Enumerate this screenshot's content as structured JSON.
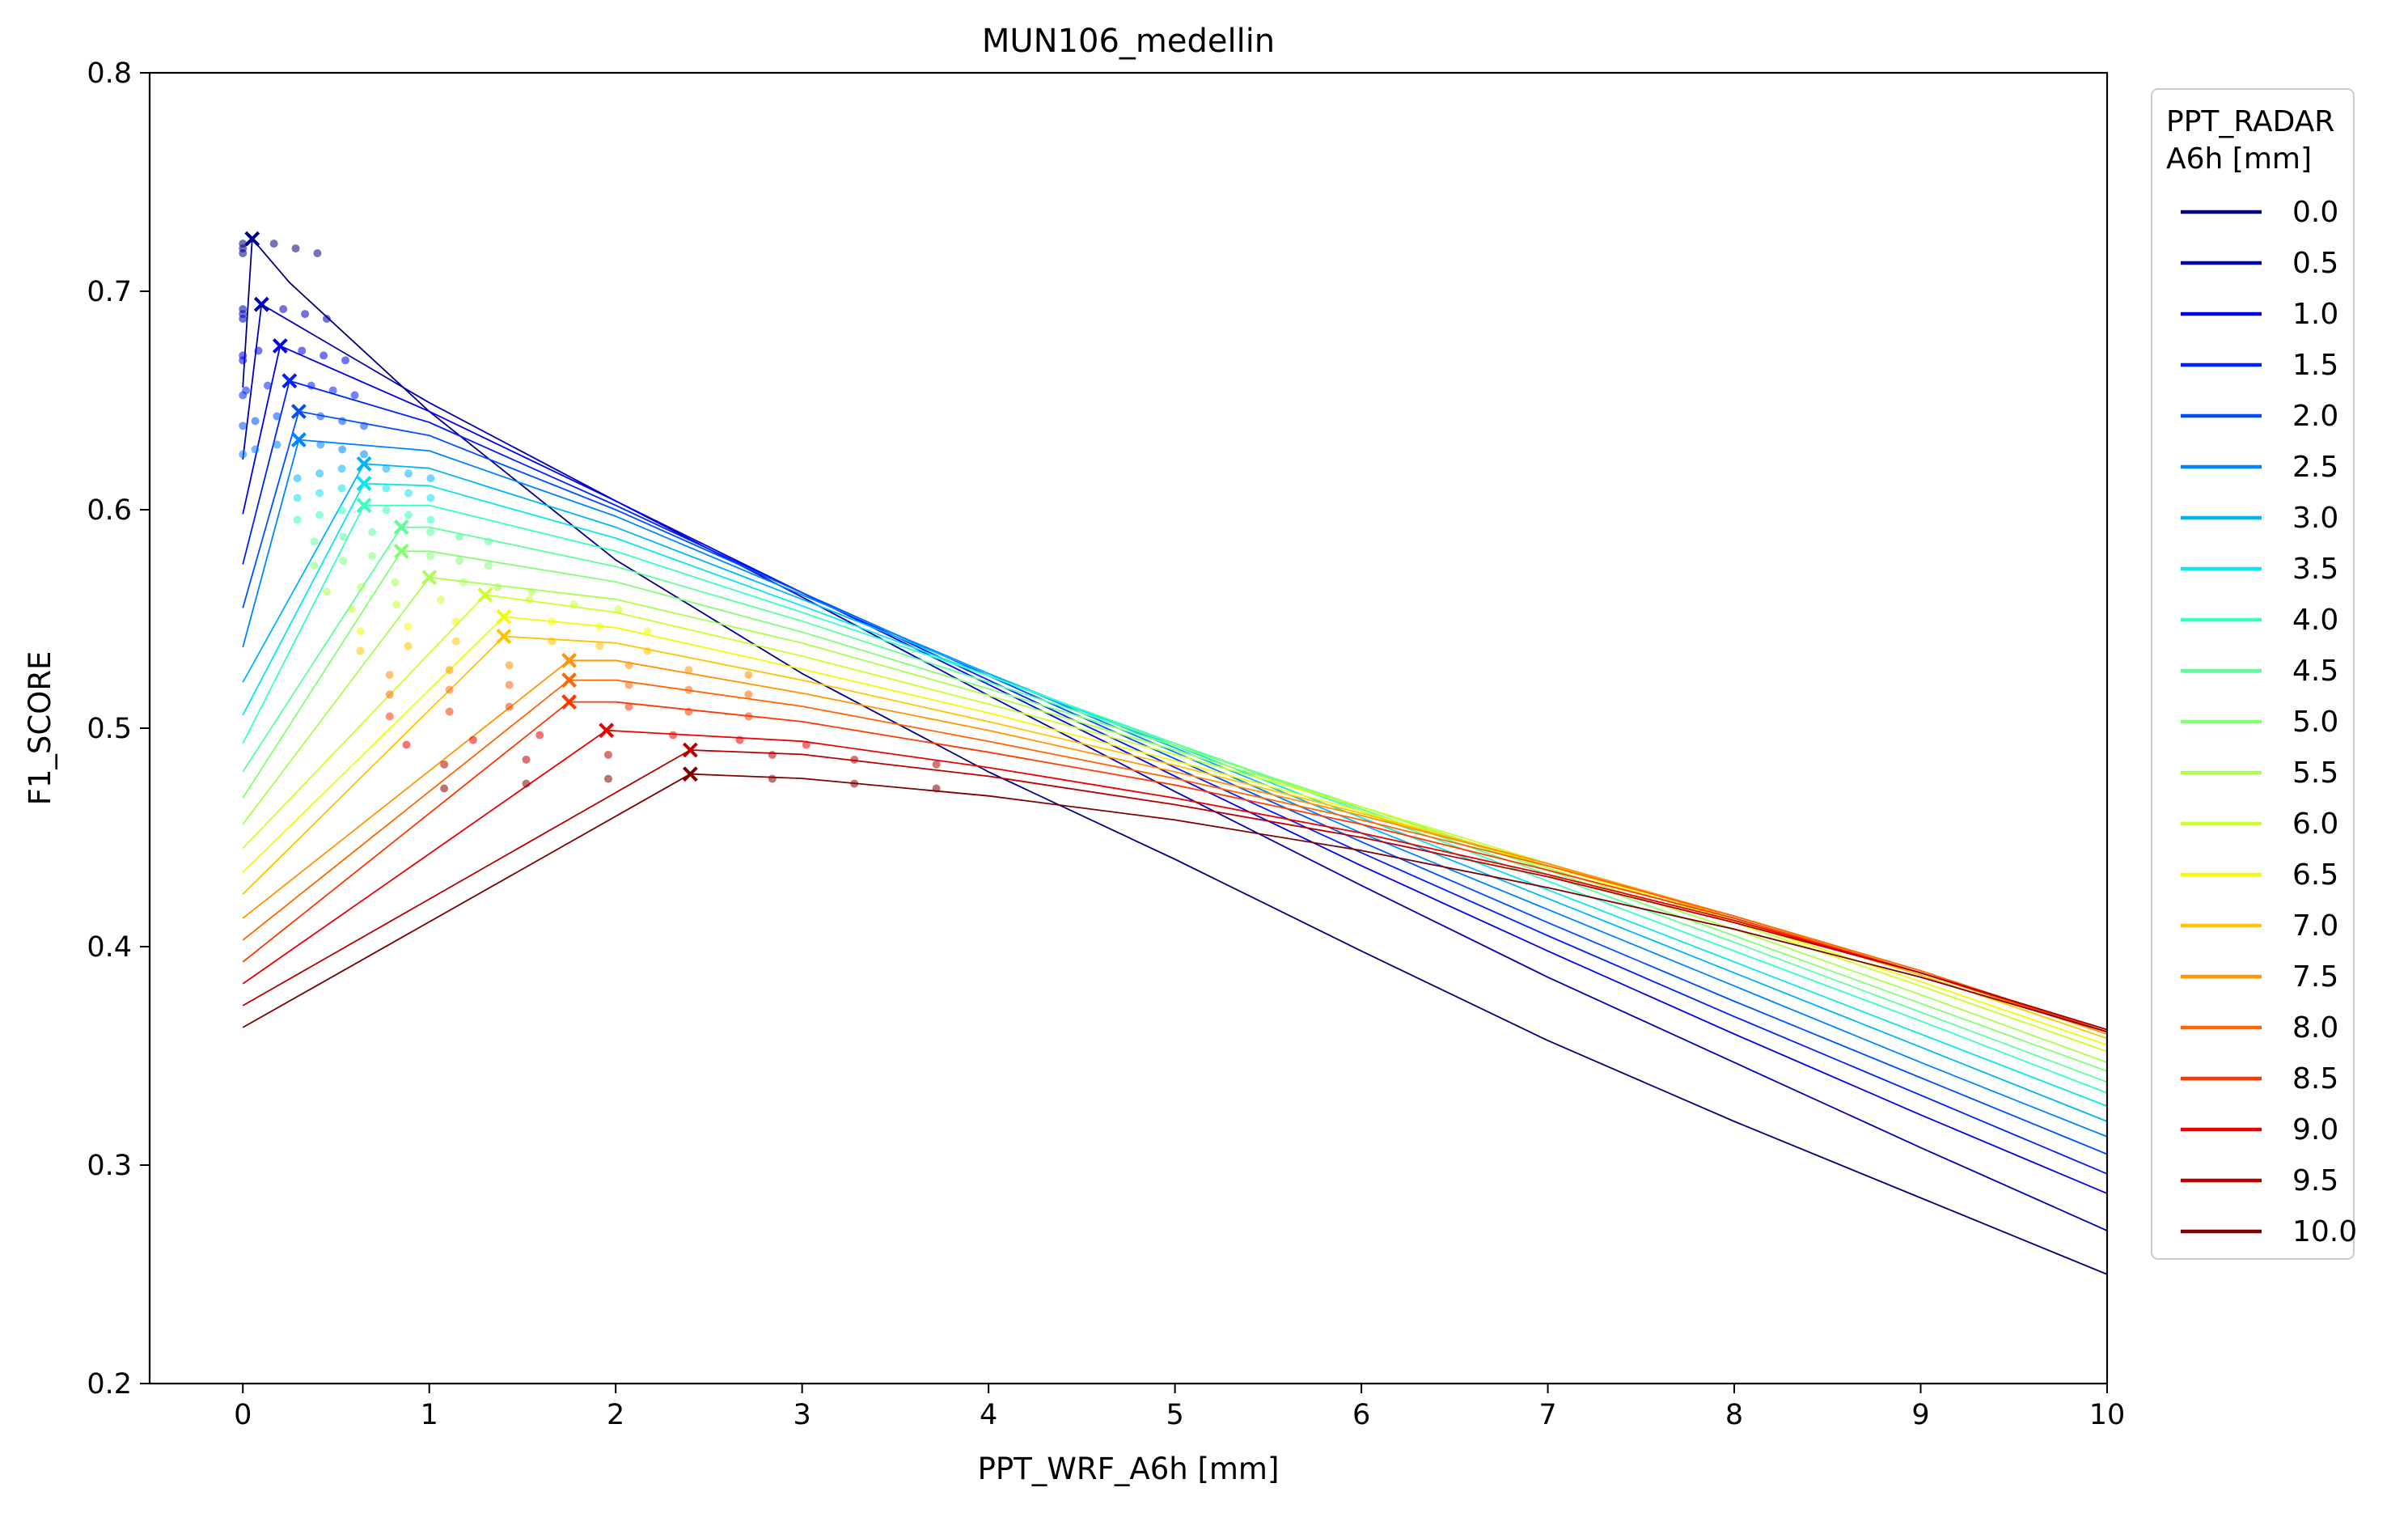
{
  "chart_data": {
    "type": "line",
    "title": "MUN106_medellin",
    "xlabel": "PPT_WRF_A6h [mm]",
    "ylabel": "F1_SCORE",
    "xlim": [
      -0.5,
      10
    ],
    "ylim": [
      0.2,
      0.8
    ],
    "xticks": [
      "0",
      "1",
      "2",
      "3",
      "4",
      "5",
      "6",
      "7",
      "8",
      "9",
      "10"
    ],
    "yticks": [
      "0.2",
      "0.3",
      "0.4",
      "0.5",
      "0.6",
      "0.7",
      "0.8"
    ],
    "grid": false,
    "legend": {
      "title_line1": "PPT_RADAR",
      "title_line2": "A6h [mm]",
      "placement": "outside-right"
    },
    "colors": [
      "#00007f",
      "#0000b6",
      "#0000ed",
      "#0020ff",
      "#0050ff",
      "#0084ff",
      "#00b4ff",
      "#0ce4ef",
      "#36ffc0",
      "#5dff9a",
      "#83ff73",
      "#a9ff4e",
      "#c9ff2d",
      "#f1fc06",
      "#ffc400",
      "#ff9400",
      "#ff6600",
      "#ff3700",
      "#ed0000",
      "#b60000",
      "#7f0000"
    ],
    "series": [
      {
        "name": "0.0",
        "peak": [
          0.05,
          0.724
        ],
        "x": [
          0.0,
          0.05,
          0.25,
          1.0,
          2.0,
          3.0,
          4.0,
          5.0,
          6.0,
          7.0,
          8.0,
          9.0,
          10.0
        ],
        "y": [
          0.656,
          0.724,
          0.704,
          0.645,
          0.577,
          0.525,
          0.48,
          0.44,
          0.398,
          0.357,
          0.32,
          0.285,
          0.25
        ]
      },
      {
        "name": "0.5",
        "peak": [
          0.1,
          0.694
        ],
        "x": [
          0.0,
          0.1,
          1.0,
          2.0,
          3.0,
          4.0,
          5.0,
          6.0,
          7.0,
          8.0,
          9.0,
          10.0
        ],
        "y": [
          0.623,
          0.694,
          0.649,
          0.604,
          0.56,
          0.515,
          0.471,
          0.428,
          0.386,
          0.347,
          0.308,
          0.27
        ]
      },
      {
        "name": "1.0",
        "peak": [
          0.2,
          0.675
        ],
        "x": [
          0.0,
          0.2,
          1.0,
          2.0,
          3.0,
          4.0,
          5.0,
          6.0,
          7.0,
          8.0,
          9.0,
          10.0
        ],
        "y": [
          0.598,
          0.675,
          0.645,
          0.604,
          0.562,
          0.52,
          0.478,
          0.437,
          0.398,
          0.36,
          0.323,
          0.287
        ]
      },
      {
        "name": "1.5",
        "peak": [
          0.25,
          0.659
        ],
        "x": [
          0.0,
          0.25,
          1.0,
          2.0,
          3.0,
          4.0,
          5.0,
          6.0,
          7.0,
          8.0,
          9.0,
          10.0
        ],
        "y": [
          0.575,
          0.659,
          0.64,
          0.602,
          0.562,
          0.522,
          0.482,
          0.443,
          0.405,
          0.368,
          0.332,
          0.296
        ]
      },
      {
        "name": "2.0",
        "peak": [
          0.3,
          0.645
        ],
        "x": [
          0.0,
          0.3,
          1.0,
          2.0,
          3.0,
          4.0,
          5.0,
          6.0,
          7.0,
          8.0,
          9.0,
          10.0
        ],
        "y": [
          0.555,
          0.645,
          0.634,
          0.6,
          0.562,
          0.524,
          0.486,
          0.448,
          0.411,
          0.375,
          0.34,
          0.305
        ]
      },
      {
        "name": "2.5",
        "peak": [
          0.3,
          0.632
        ],
        "x": [
          0.0,
          0.3,
          1.0,
          2.0,
          3.0,
          4.0,
          5.0,
          6.0,
          7.0,
          8.0,
          9.0,
          10.0
        ],
        "y": [
          0.537,
          0.632,
          0.627,
          0.597,
          0.561,
          0.525,
          0.489,
          0.452,
          0.417,
          0.382,
          0.347,
          0.313
        ]
      },
      {
        "name": "3.0",
        "peak": [
          0.65,
          0.621
        ],
        "x": [
          0.0,
          0.65,
          1.0,
          2.0,
          3.0,
          4.0,
          5.0,
          6.0,
          7.0,
          8.0,
          9.0,
          10.0
        ],
        "y": [
          0.521,
          0.621,
          0.619,
          0.592,
          0.559,
          0.525,
          0.491,
          0.456,
          0.422,
          0.388,
          0.354,
          0.32
        ]
      },
      {
        "name": "3.5",
        "peak": [
          0.65,
          0.612
        ],
        "x": [
          0.0,
          0.65,
          1.0,
          2.0,
          3.0,
          4.0,
          5.0,
          6.0,
          7.0,
          8.0,
          9.0,
          10.0
        ],
        "y": [
          0.506,
          0.612,
          0.611,
          0.587,
          0.556,
          0.524,
          0.492,
          0.459,
          0.426,
          0.393,
          0.36,
          0.327
        ]
      },
      {
        "name": "4.0",
        "peak": [
          0.65,
          0.602
        ],
        "x": [
          0.0,
          0.65,
          1.0,
          2.0,
          3.0,
          4.0,
          5.0,
          6.0,
          7.0,
          8.0,
          9.0,
          10.0
        ],
        "y": [
          0.493,
          0.602,
          0.602,
          0.581,
          0.553,
          0.524,
          0.493,
          0.462,
          0.43,
          0.398,
          0.366,
          0.333
        ]
      },
      {
        "name": "4.5",
        "peak": [
          0.85,
          0.592
        ],
        "x": [
          0.0,
          0.85,
          1.0,
          2.0,
          3.0,
          4.0,
          5.0,
          6.0,
          7.0,
          8.0,
          9.0,
          10.0
        ],
        "y": [
          0.48,
          0.592,
          0.592,
          0.574,
          0.549,
          0.521,
          0.493,
          0.463,
          0.433,
          0.402,
          0.37,
          0.338
        ]
      },
      {
        "name": "5.0",
        "peak": [
          0.85,
          0.581
        ],
        "x": [
          0.0,
          0.85,
          1.0,
          2.0,
          3.0,
          4.0,
          5.0,
          6.0,
          7.0,
          8.0,
          9.0,
          10.0
        ],
        "y": [
          0.468,
          0.581,
          0.581,
          0.567,
          0.544,
          0.518,
          0.492,
          0.464,
          0.435,
          0.405,
          0.374,
          0.343
        ]
      },
      {
        "name": "5.5",
        "peak": [
          1.0,
          0.569
        ],
        "x": [
          0.0,
          1.0,
          2.0,
          3.0,
          4.0,
          5.0,
          6.0,
          7.0,
          8.0,
          9.0,
          10.0
        ],
        "y": [
          0.456,
          0.569,
          0.559,
          0.539,
          0.515,
          0.49,
          0.464,
          0.436,
          0.408,
          0.378,
          0.347
        ]
      },
      {
        "name": "6.0",
        "peak": [
          1.3,
          0.561
        ],
        "x": [
          0.0,
          1.3,
          2.0,
          3.0,
          4.0,
          5.0,
          6.0,
          7.0,
          8.0,
          9.0,
          10.0
        ],
        "y": [
          0.445,
          0.561,
          0.553,
          0.533,
          0.511,
          0.488,
          0.464,
          0.438,
          0.411,
          0.382,
          0.352
        ]
      },
      {
        "name": "6.5",
        "peak": [
          1.4,
          0.551
        ],
        "x": [
          0.0,
          1.4,
          2.0,
          3.0,
          4.0,
          5.0,
          6.0,
          7.0,
          8.0,
          9.0,
          10.0
        ],
        "y": [
          0.434,
          0.551,
          0.546,
          0.527,
          0.507,
          0.485,
          0.462,
          0.437,
          0.412,
          0.384,
          0.355
        ]
      },
      {
        "name": "7.0",
        "peak": [
          1.4,
          0.542
        ],
        "x": [
          0.0,
          1.4,
          2.0,
          3.0,
          4.0,
          5.0,
          6.0,
          7.0,
          8.0,
          9.0,
          10.0
        ],
        "y": [
          0.424,
          0.542,
          0.539,
          0.522,
          0.503,
          0.483,
          0.461,
          0.438,
          0.413,
          0.387,
          0.358
        ]
      },
      {
        "name": "7.5",
        "peak": [
          1.75,
          0.531
        ],
        "x": [
          0.0,
          1.75,
          2.0,
          3.0,
          4.0,
          5.0,
          6.0,
          7.0,
          8.0,
          9.0,
          10.0
        ],
        "y": [
          0.413,
          0.531,
          0.531,
          0.516,
          0.499,
          0.48,
          0.46,
          0.438,
          0.414,
          0.388,
          0.36
        ]
      },
      {
        "name": "8.0",
        "peak": [
          1.75,
          0.522
        ],
        "x": [
          0.0,
          1.75,
          2.0,
          3.0,
          4.0,
          5.0,
          6.0,
          7.0,
          8.0,
          9.0,
          10.0
        ],
        "y": [
          0.403,
          0.522,
          0.522,
          0.51,
          0.494,
          0.477,
          0.458,
          0.437,
          0.414,
          0.389,
          0.361
        ]
      },
      {
        "name": "8.5",
        "peak": [
          1.75,
          0.512
        ],
        "x": [
          0.0,
          1.75,
          2.0,
          3.0,
          4.0,
          5.0,
          6.0,
          7.0,
          8.0,
          9.0,
          10.0
        ],
        "y": [
          0.393,
          0.512,
          0.512,
          0.503,
          0.489,
          0.474,
          0.456,
          0.435,
          0.413,
          0.388,
          0.361
        ]
      },
      {
        "name": "9.0",
        "peak": [
          1.95,
          0.499
        ],
        "x": [
          0.0,
          1.95,
          3.0,
          4.0,
          5.0,
          6.0,
          7.0,
          8.0,
          9.0,
          10.0
        ],
        "y": [
          0.383,
          0.499,
          0.494,
          0.482,
          0.468,
          0.452,
          0.433,
          0.412,
          0.388,
          0.362
        ]
      },
      {
        "name": "9.5",
        "peak": [
          2.4,
          0.49
        ],
        "x": [
          0.0,
          2.4,
          3.0,
          4.0,
          5.0,
          6.0,
          7.0,
          8.0,
          9.0,
          10.0
        ],
        "y": [
          0.373,
          0.49,
          0.488,
          0.478,
          0.465,
          0.45,
          0.432,
          0.411,
          0.388,
          0.362
        ]
      },
      {
        "name": "10.0",
        "peak": [
          2.4,
          0.479
        ],
        "x": [
          0.0,
          2.4,
          3.0,
          4.0,
          5.0,
          6.0,
          7.0,
          8.0,
          9.0,
          10.0
        ],
        "y": [
          0.363,
          0.479,
          0.477,
          0.469,
          0.458,
          0.444,
          0.427,
          0.408,
          0.386,
          0.361
        ]
      }
    ]
  }
}
